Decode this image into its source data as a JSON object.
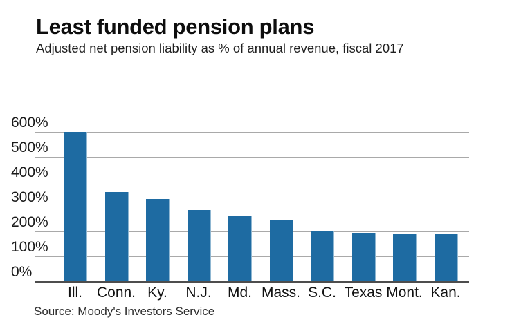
{
  "header": {
    "title": "Least funded pension plans",
    "subtitle": "Adjusted net pension liability as % of annual revenue, fiscal 2017"
  },
  "footer": {
    "source": "Source: Moody's Investors Service"
  },
  "colors": {
    "bar": "#1e6ba2",
    "bar_edge": "#8fb7d2",
    "gridline": "#a9a9a9",
    "axis": "#4d4d4d",
    "text": "#1a1a1a",
    "background": "#ffffff"
  },
  "chart_data": {
    "type": "bar",
    "title": "Least funded pension plans",
    "subtitle": "Adjusted net pension liability as % of annual revenue, fiscal 2017",
    "categories": [
      "Ill.",
      "Conn.",
      "Ky.",
      "N.J.",
      "Md.",
      "Mass.",
      "S.C.",
      "Texas",
      "Mont.",
      "Kan."
    ],
    "values": [
      601,
      358,
      330,
      286,
      261,
      244,
      204,
      194,
      193,
      191
    ],
    "xlabel": "",
    "ylabel": "Adjusted net pension liability as % of annual revenue",
    "ylim": [
      0,
      600
    ],
    "yticks": [
      0,
      100,
      200,
      300,
      400,
      500,
      600
    ],
    "ytick_suffix": "%",
    "grid": "horizontal",
    "legend": "none",
    "source": "Source: Moody's Investors Service"
  }
}
